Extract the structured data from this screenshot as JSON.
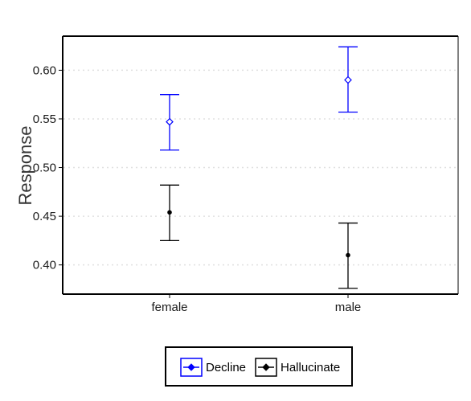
{
  "chart_data": {
    "type": "scatter",
    "ylabel": "Response",
    "xlabel": "",
    "categories": [
      "female",
      "male"
    ],
    "ylim": [
      0.37,
      0.635
    ],
    "yticks": [
      0.4,
      0.45,
      0.5,
      0.55,
      0.6
    ],
    "ytick_labels": [
      "0.40",
      "0.45",
      "0.50",
      "0.55",
      "0.60"
    ],
    "grid": "horizontal dotted",
    "legend_position": "bottom",
    "error_bars": true,
    "series": [
      {
        "name": "Decline",
        "color": "#0000ff",
        "marker": "diamond-open",
        "values": [
          0.547,
          0.59
        ],
        "lower": [
          0.518,
          0.557
        ],
        "upper": [
          0.575,
          0.624
        ]
      },
      {
        "name": "Hallucinate",
        "color": "#000000",
        "marker": "circle-filled",
        "values": [
          0.454,
          0.41
        ],
        "lower": [
          0.425,
          0.376
        ],
        "upper": [
          0.482,
          0.443
        ]
      }
    ]
  }
}
